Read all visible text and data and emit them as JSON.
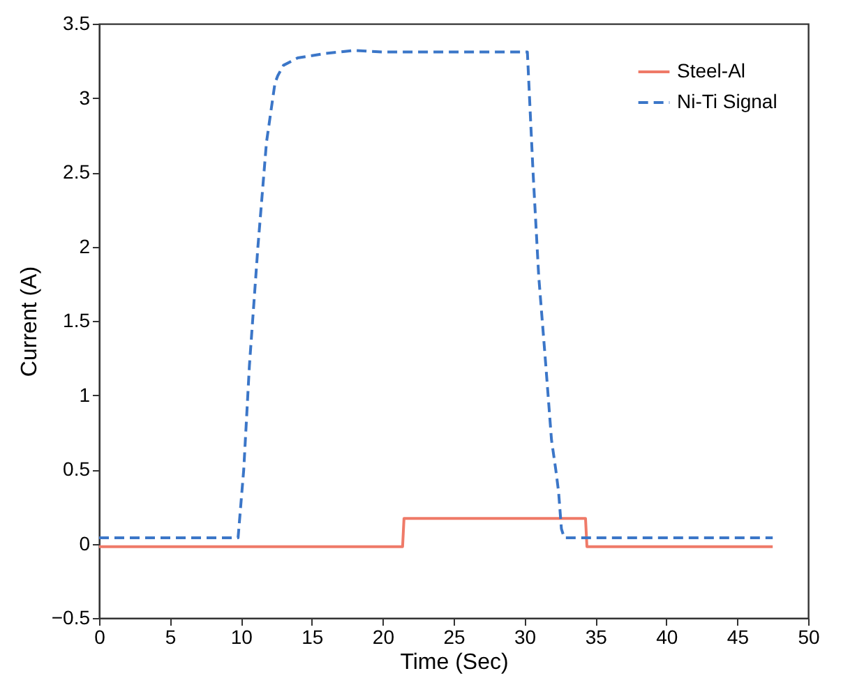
{
  "chart_data": {
    "type": "line",
    "xlabel": "Time (Sec)",
    "ylabel": "Current (A)",
    "xlim": [
      0,
      50
    ],
    "xticks": [
      0,
      5,
      10,
      15,
      20,
      25,
      30,
      35,
      40,
      45,
      50
    ],
    "ylim": [
      -0.5,
      3.5
    ],
    "yticks": [
      {
        "value": -0.5,
        "label": "−0.5"
      },
      0,
      0.5,
      1,
      1.5,
      2,
      2.5,
      3,
      3.5
    ],
    "grid": false,
    "legend": "top right",
    "marker": "none",
    "series": [
      {
        "name": "Steel-Al",
        "color": "#ef7a68",
        "line_style": "solid",
        "x": [
          0,
          21.4,
          21.5,
          34.3,
          34.4,
          47.5
        ],
        "values": [
          -0.02,
          -0.02,
          0.17,
          0.17,
          -0.02,
          -0.02
        ]
      },
      {
        "name": "Ni-Ti Signal",
        "color": "#3b76c8",
        "line_style": "dashed",
        "x": [
          0,
          9.8,
          10.2,
          10.6,
          11.2,
          11.8,
          12.4,
          12.6,
          13,
          14,
          16,
          18,
          20,
          30.2,
          30.6,
          31,
          31.5,
          31.9,
          32.2,
          32.4,
          32.6,
          32.8,
          47.5
        ],
        "values": [
          0.04,
          0.04,
          0.5,
          1.2,
          2,
          2.7,
          3.1,
          3.15,
          3.22,
          3.27,
          3.3,
          3.32,
          3.31,
          3.31,
          2.5,
          1.8,
          1.2,
          0.7,
          0.5,
          0.35,
          0.1,
          0.04,
          0.04
        ]
      }
    ]
  }
}
